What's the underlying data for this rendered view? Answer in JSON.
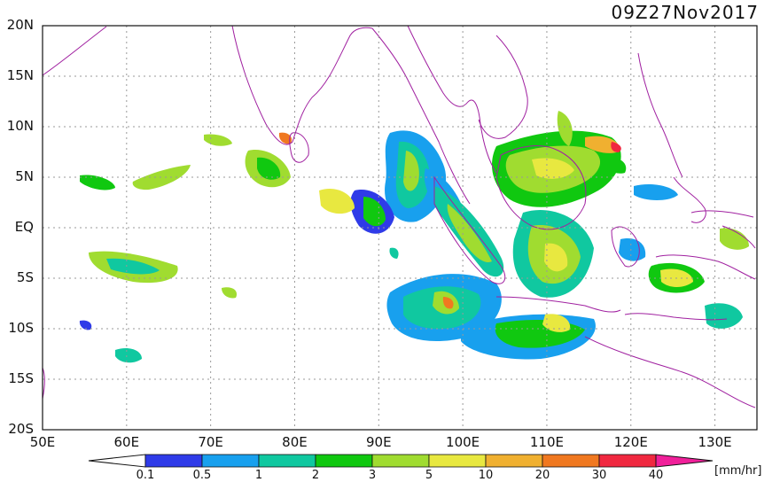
{
  "title": "09Z27Nov2017",
  "map": {
    "lon_range": [
      50,
      135
    ],
    "lat_range": [
      -20,
      20
    ],
    "lat_labels": [
      "20N",
      "15N",
      "10N",
      "5N",
      "EQ",
      "5S",
      "10S",
      "15S",
      "20S"
    ],
    "lat_values": [
      20,
      15,
      10,
      5,
      0,
      -5,
      -10,
      -15,
      -20
    ],
    "lon_labels": [
      "50E",
      "60E",
      "70E",
      "80E",
      "90E",
      "100E",
      "110E",
      "120E",
      "130E"
    ],
    "lon_values": [
      50,
      60,
      70,
      80,
      90,
      100,
      110,
      120,
      130
    ],
    "coastline_color": "#a020a0",
    "grid": true
  },
  "colorbar": {
    "labels": [
      "0.1",
      "0.5",
      "1",
      "2",
      "3",
      "5",
      "10",
      "20",
      "30",
      "40"
    ],
    "colors": [
      "#ffffff",
      "#2f3be8",
      "#18a0ee",
      "#10c8a0",
      "#10c810",
      "#a0dc30",
      "#e8e840",
      "#f0b030",
      "#f07820",
      "#f02840",
      "#f0209a"
    ],
    "unit": "[mm/hr]"
  }
}
